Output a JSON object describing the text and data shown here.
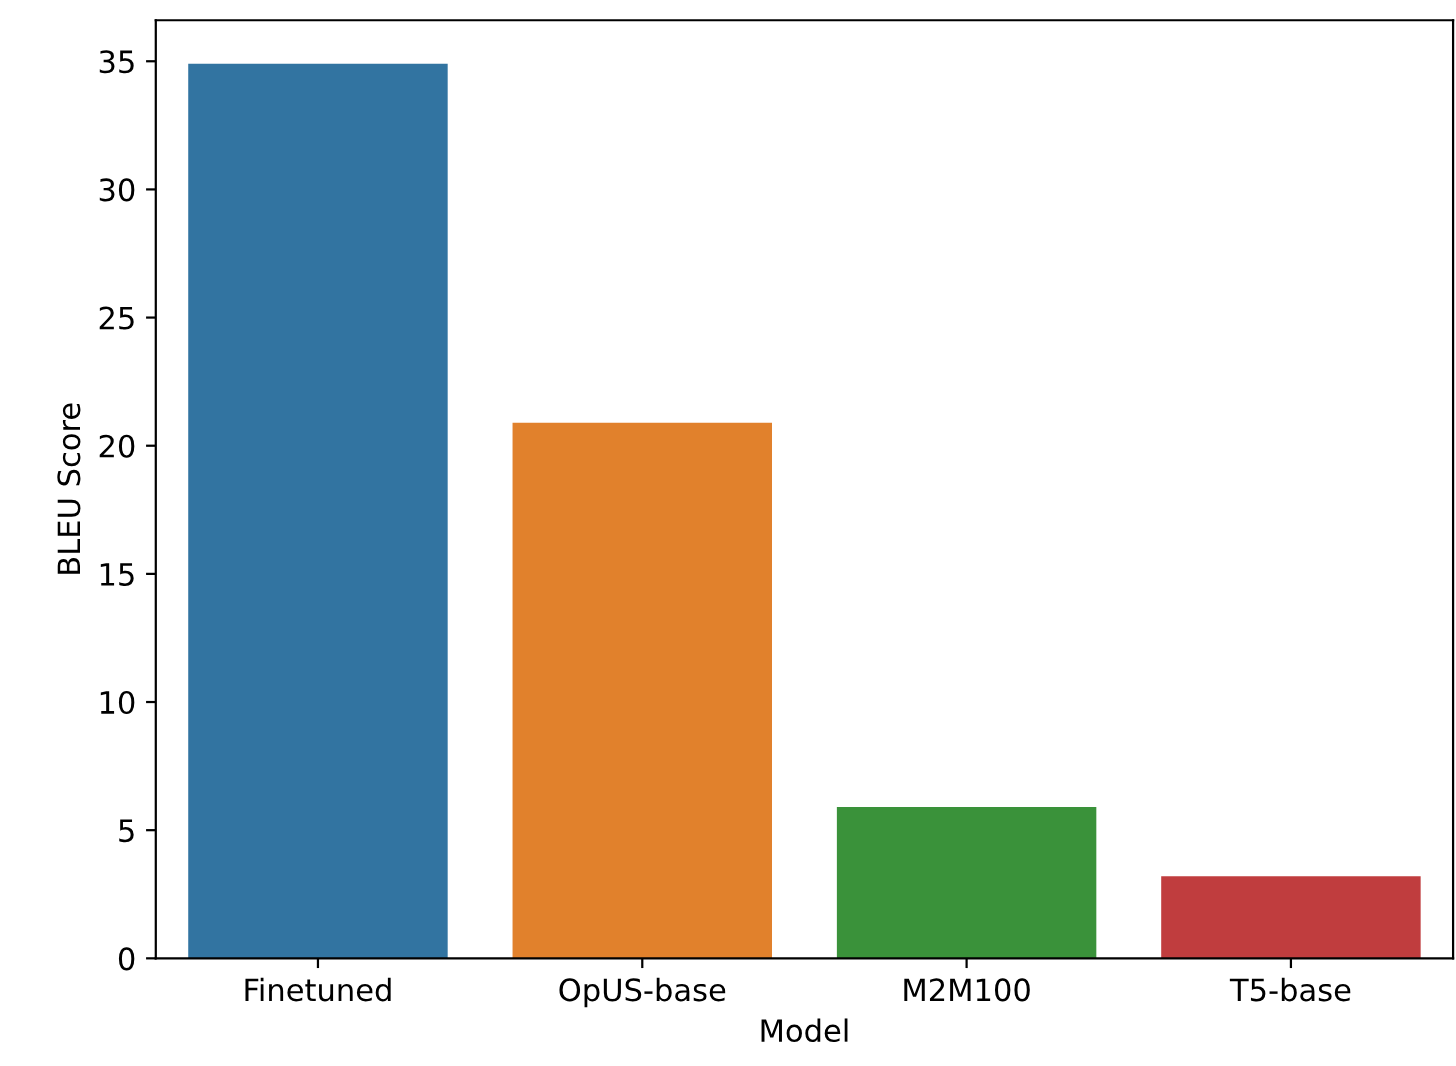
{
  "chart_data": {
    "type": "bar",
    "xlabel": "Model",
    "ylabel": "BLEU Score",
    "categories": [
      "Finetuned",
      "OpUS-base",
      "M2M100",
      "T5-base"
    ],
    "values": [
      34.9,
      20.9,
      5.9,
      3.2
    ],
    "colors": [
      "#3274a1",
      "#e1812c",
      "#3a923a",
      "#c03d3e"
    ],
    "ylim": [
      0,
      36.6
    ],
    "yticks": [
      0,
      5,
      10,
      15,
      20,
      25,
      30,
      35
    ],
    "grid": false
  }
}
